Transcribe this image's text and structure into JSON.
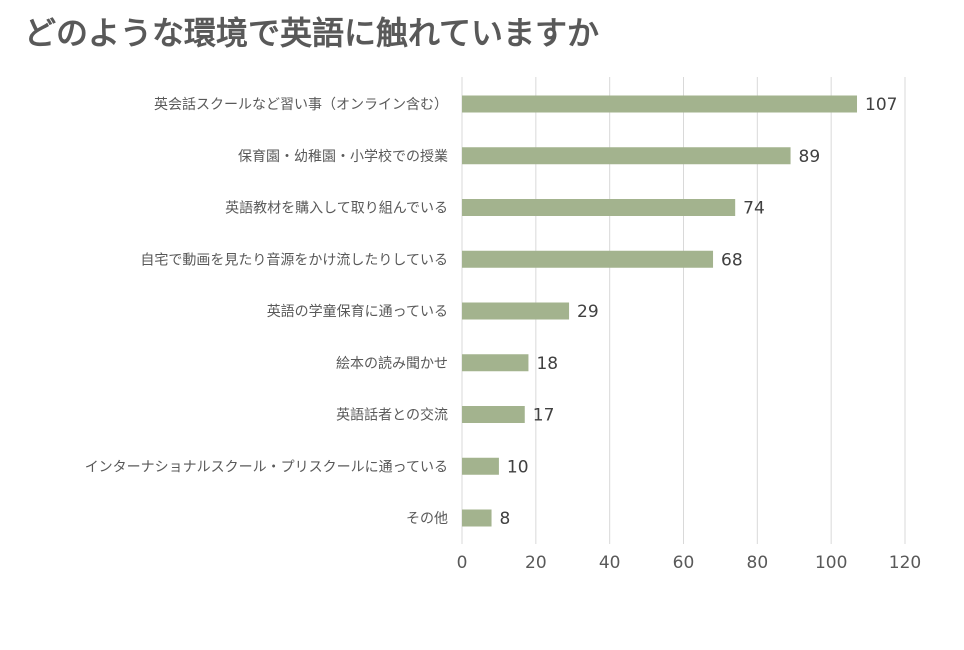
{
  "chart_data": {
    "type": "bar",
    "orientation": "horizontal",
    "title": "どのような環境で英語に触れていますか",
    "categories": [
      "英会話スクールなど習い事（オンライン含む）",
      "保育園・幼稚園・小学校での授業",
      "英語教材を購入して取り組んでいる",
      "自宅で動画を見たり音源をかけ流したりしている",
      "英語の学童保育に通っている",
      "絵本の読み聞かせ",
      "英語話者との交流",
      "インターナショナルスクール・プリスクールに通っている",
      "その他"
    ],
    "values": [
      107,
      89,
      74,
      68,
      29,
      18,
      17,
      10,
      8
    ],
    "value_labels": [
      "107",
      "89",
      "74",
      "68",
      "29",
      "18",
      "17",
      "10",
      "8"
    ],
    "xlim": [
      0,
      120
    ],
    "x_ticks": [
      0,
      20,
      40,
      60,
      80,
      100,
      120
    ],
    "x_tick_labels": [
      "0",
      "20",
      "40",
      "60",
      "80",
      "100",
      "120"
    ],
    "grid": "vertical",
    "legend": "none",
    "colors": {
      "bar": "#a3b38e",
      "grid": "#d9d9d9",
      "title": "#595959"
    }
  }
}
